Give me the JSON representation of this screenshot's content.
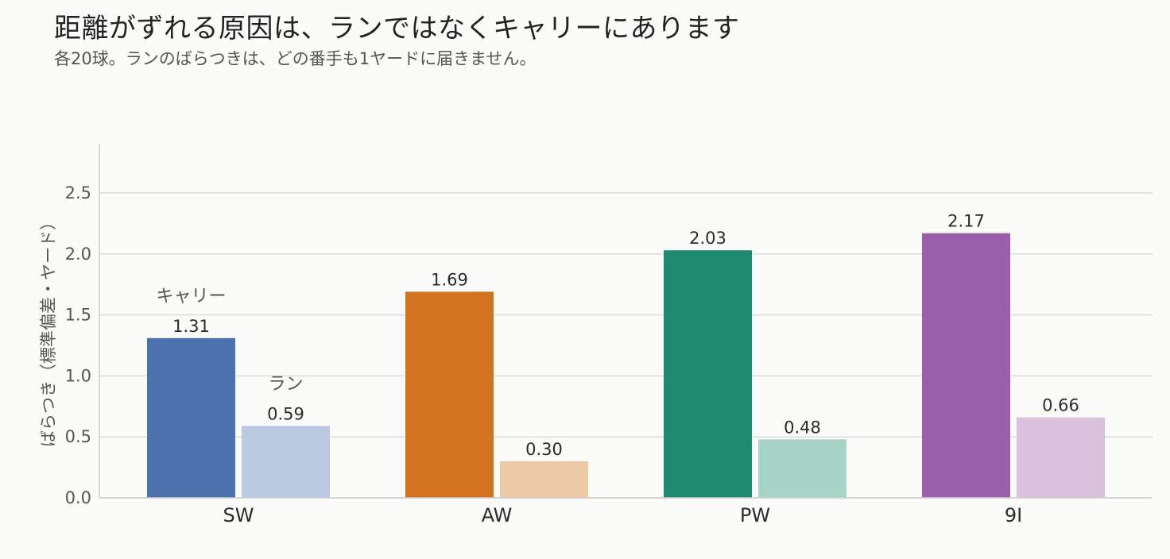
{
  "title": "距離がずれる原因は、ランではなくキャリーにあります",
  "subtitle": "各20球。ランのばらつきは、どの番手も1ヤードに届きません。",
  "chart_data": {
    "type": "bar",
    "categories": [
      "SW",
      "AW",
      "PW",
      "9I"
    ],
    "series": [
      {
        "name": "キャリー",
        "values": [
          1.31,
          1.69,
          2.03,
          2.17
        ],
        "value_labels": [
          "1.31",
          "1.69",
          "2.03",
          "2.17"
        ],
        "colors": [
          "#4c72ae",
          "#d3731f",
          "#1f8a70",
          "#9b5ea9"
        ]
      },
      {
        "name": "ラン",
        "values": [
          0.59,
          0.3,
          0.48,
          0.66
        ],
        "value_labels": [
          "0.59",
          "0.30",
          "0.48",
          "0.66"
        ],
        "colors": [
          "#bbc9e0",
          "#eec9a8",
          "#aad3c8",
          "#d9c0dd"
        ]
      }
    ],
    "ylabel": "ばらつき（標準偏差・ヤード）",
    "xlabel": "",
    "ylim": [
      0,
      2.9
    ],
    "yticks": [
      "0.0",
      "0.5",
      "1.0",
      "1.5",
      "2.0",
      "2.5"
    ],
    "grid": true,
    "legend": "series labels placed above the SW bars"
  }
}
